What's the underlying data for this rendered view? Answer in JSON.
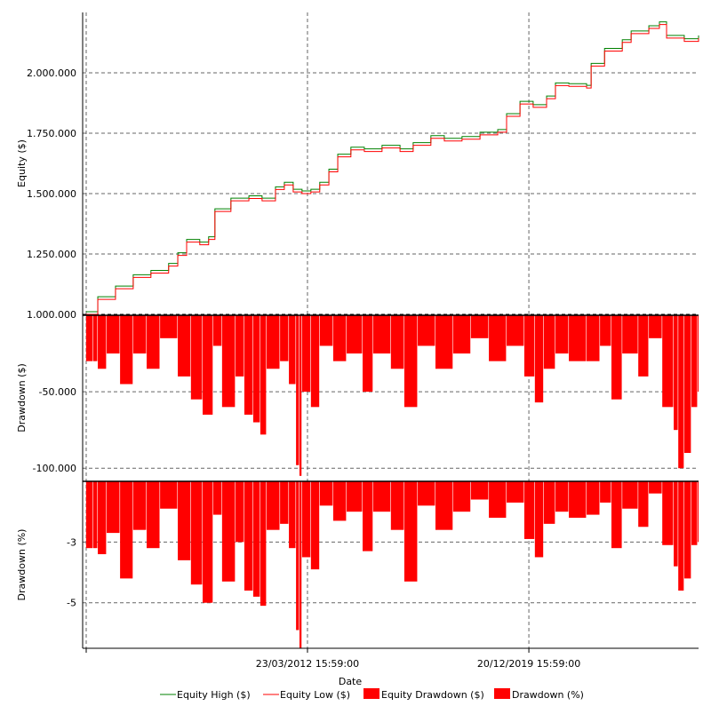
{
  "chart_data": {
    "type": "line",
    "xlabel": "Date",
    "x_tick_labels": [
      {
        "year": 2012.22,
        "label": "23/03/2012 15:59:00"
      },
      {
        "year": 2019.97,
        "label": "20/12/2019 15:59:00"
      }
    ],
    "xlim": [
      2004.35,
      2025.91
    ],
    "grid": true,
    "legend_position": "bottom",
    "legend": [
      {
        "name": "Equity High ($)",
        "color": "#008000",
        "kind": "line"
      },
      {
        "name": "Equity Low ($)",
        "color": "#ff0000",
        "kind": "line"
      },
      {
        "name": "Equity Drawdown ($)",
        "color": "#ff0000",
        "kind": "box"
      },
      {
        "name": "Drawdown (%)",
        "color": "#ff0000",
        "kind": "box"
      }
    ],
    "panels": [
      {
        "id": "equity",
        "ylabel": "Equity ($)",
        "ylim": [
          1000000,
          2250000
        ],
        "yticks": [
          {
            "v": 1000000,
            "label": "1.000.000"
          },
          {
            "v": 1250000,
            "label": "1.250.000"
          },
          {
            "v": 1500000,
            "label": "1.500.000"
          },
          {
            "v": 1750000,
            "label": "1.750.000"
          },
          {
            "v": 2000000,
            "label": "2.000.000"
          }
        ],
        "series": [
          {
            "name": "Equity",
            "x": [
              2004.47,
              2004.88,
              2005.5,
              2006.12,
              2006.74,
              2007.36,
              2007.68,
              2007.99,
              2008.45,
              2008.76,
              2008.98,
              2009.54,
              2010.17,
              2010.63,
              2011.1,
              2011.41,
              2011.72,
              2012.03,
              2012.34,
              2012.65,
              2012.97,
              2013.28,
              2013.74,
              2014.21,
              2014.83,
              2015.46,
              2015.92,
              2016.54,
              2017.01,
              2017.63,
              2018.26,
              2018.88,
              2019.19,
              2019.66,
              2020.12,
              2020.59,
              2020.9,
              2021.37,
              2021.99,
              2022.15,
              2022.62,
              2023.24,
              2023.55,
              2024.17,
              2024.54,
              2024.79,
              2025.41,
              2025.91
            ],
            "y": [
              1000000,
              1062000,
              1106000,
              1153000,
              1171000,
              1200000,
              1244000,
              1299000,
              1288000,
              1310000,
              1426000,
              1470000,
              1480000,
              1470000,
              1517000,
              1536000,
              1507000,
              1500000,
              1507000,
              1536000,
              1590000,
              1652000,
              1681000,
              1674000,
              1689000,
              1674000,
              1700000,
              1729000,
              1718000,
              1725000,
              1743000,
              1754000,
              1820000,
              1871000,
              1857000,
              1893000,
              1947000,
              1944000,
              1937000,
              2028000,
              2090000,
              2126000,
              2162000,
              2184000,
              2200000,
              2144000,
              2130000,
              2144000
            ]
          }
        ]
      },
      {
        "id": "drawdown-usd",
        "ylabel": "Drawdown ($)",
        "ylim": [
          -108000,
          0
        ],
        "yticks": [
          {
            "v": -50000,
            "label": "-50.000"
          },
          {
            "v": -100000,
            "label": "-100.000"
          }
        ],
        "series": [
          {
            "name": "Equity Drawdown ($)",
            "x": [
              2004.47,
              2004.72,
              2004.88,
              2005.19,
              2005.66,
              2006.12,
              2006.59,
              2007.06,
              2007.68,
              2008.14,
              2008.55,
              2008.92,
              2009.23,
              2009.7,
              2010.01,
              2010.32,
              2010.57,
              2010.79,
              2011.26,
              2011.57,
              2011.82,
              2011.94,
              2012.03,
              2012.34,
              2012.65,
              2013.12,
              2013.59,
              2014.15,
              2014.52,
              2015.14,
              2015.61,
              2016.08,
              2016.7,
              2017.32,
              2017.94,
              2018.57,
              2019.19,
              2019.81,
              2020.18,
              2020.49,
              2020.9,
              2021.37,
              2021.99,
              2022.46,
              2022.86,
              2023.24,
              2023.8,
              2024.17,
              2024.64,
              2025.04,
              2025.2,
              2025.41,
              2025.66,
              2025.88
            ],
            "y": [
              -30000,
              -30000,
              -35000,
              -25000,
              -45000,
              -25000,
              -35000,
              -15000,
              -40000,
              -55000,
              -65000,
              -20000,
              -60000,
              -40000,
              -65000,
              -70000,
              -78000,
              -35000,
              -30000,
              -45000,
              -98000,
              -105000,
              -50000,
              -60000,
              -20000,
              -30000,
              -25000,
              -50000,
              -25000,
              -35000,
              -60000,
              -20000,
              -35000,
              -25000,
              -15000,
              -30000,
              -20000,
              -40000,
              -57000,
              -35000,
              -25000,
              -30000,
              -30000,
              -20000,
              -55000,
              -25000,
              -40000,
              -15000,
              -60000,
              -75000,
              -100000,
              -90000,
              -60000,
              -50000
            ]
          }
        ]
      },
      {
        "id": "drawdown-pct",
        "ylabel": "Drawdown (%)",
        "ylim": [
          -6.5,
          -1
        ],
        "yticks": [
          {
            "v": -3,
            "label": "-3"
          },
          {
            "v": -5,
            "label": "-5"
          }
        ],
        "series": [
          {
            "name": "Drawdown (%)",
            "x": [
              2004.47,
              2004.72,
              2004.88,
              2005.19,
              2005.66,
              2006.12,
              2006.59,
              2007.06,
              2007.68,
              2008.14,
              2008.55,
              2008.92,
              2009.23,
              2009.7,
              2010.01,
              2010.32,
              2010.57,
              2010.79,
              2011.26,
              2011.57,
              2011.82,
              2011.94,
              2012.03,
              2012.34,
              2012.65,
              2013.12,
              2013.59,
              2014.15,
              2014.52,
              2015.14,
              2015.61,
              2016.08,
              2016.7,
              2017.32,
              2017.94,
              2018.57,
              2019.19,
              2019.81,
              2020.18,
              2020.49,
              2020.9,
              2021.37,
              2021.99,
              2022.46,
              2022.86,
              2023.24,
              2023.8,
              2024.17,
              2024.64,
              2025.04,
              2025.2,
              2025.41,
              2025.66,
              2025.88
            ],
            "y": [
              -3.2,
              -3.2,
              -3.4,
              -2.7,
              -4.2,
              -2.6,
              -3.2,
              -1.9,
              -3.6,
              -4.4,
              -5.0,
              -2.1,
              -4.3,
              -3.0,
              -4.6,
              -4.8,
              -5.1,
              -2.6,
              -2.4,
              -3.2,
              -5.9,
              -6.5,
              -3.5,
              -3.9,
              -1.8,
              -2.3,
              -2.0,
              -3.3,
              -2.0,
              -2.6,
              -4.3,
              -1.8,
              -2.6,
              -2.0,
              -1.6,
              -2.2,
              -1.7,
              -2.9,
              -3.5,
              -2.4,
              -2.0,
              -2.2,
              -2.1,
              -1.7,
              -3.2,
              -1.9,
              -2.5,
              -1.4,
              -3.1,
              -3.8,
              -4.6,
              -4.2,
              -3.1,
              -3.0
            ]
          }
        ]
      }
    ]
  }
}
